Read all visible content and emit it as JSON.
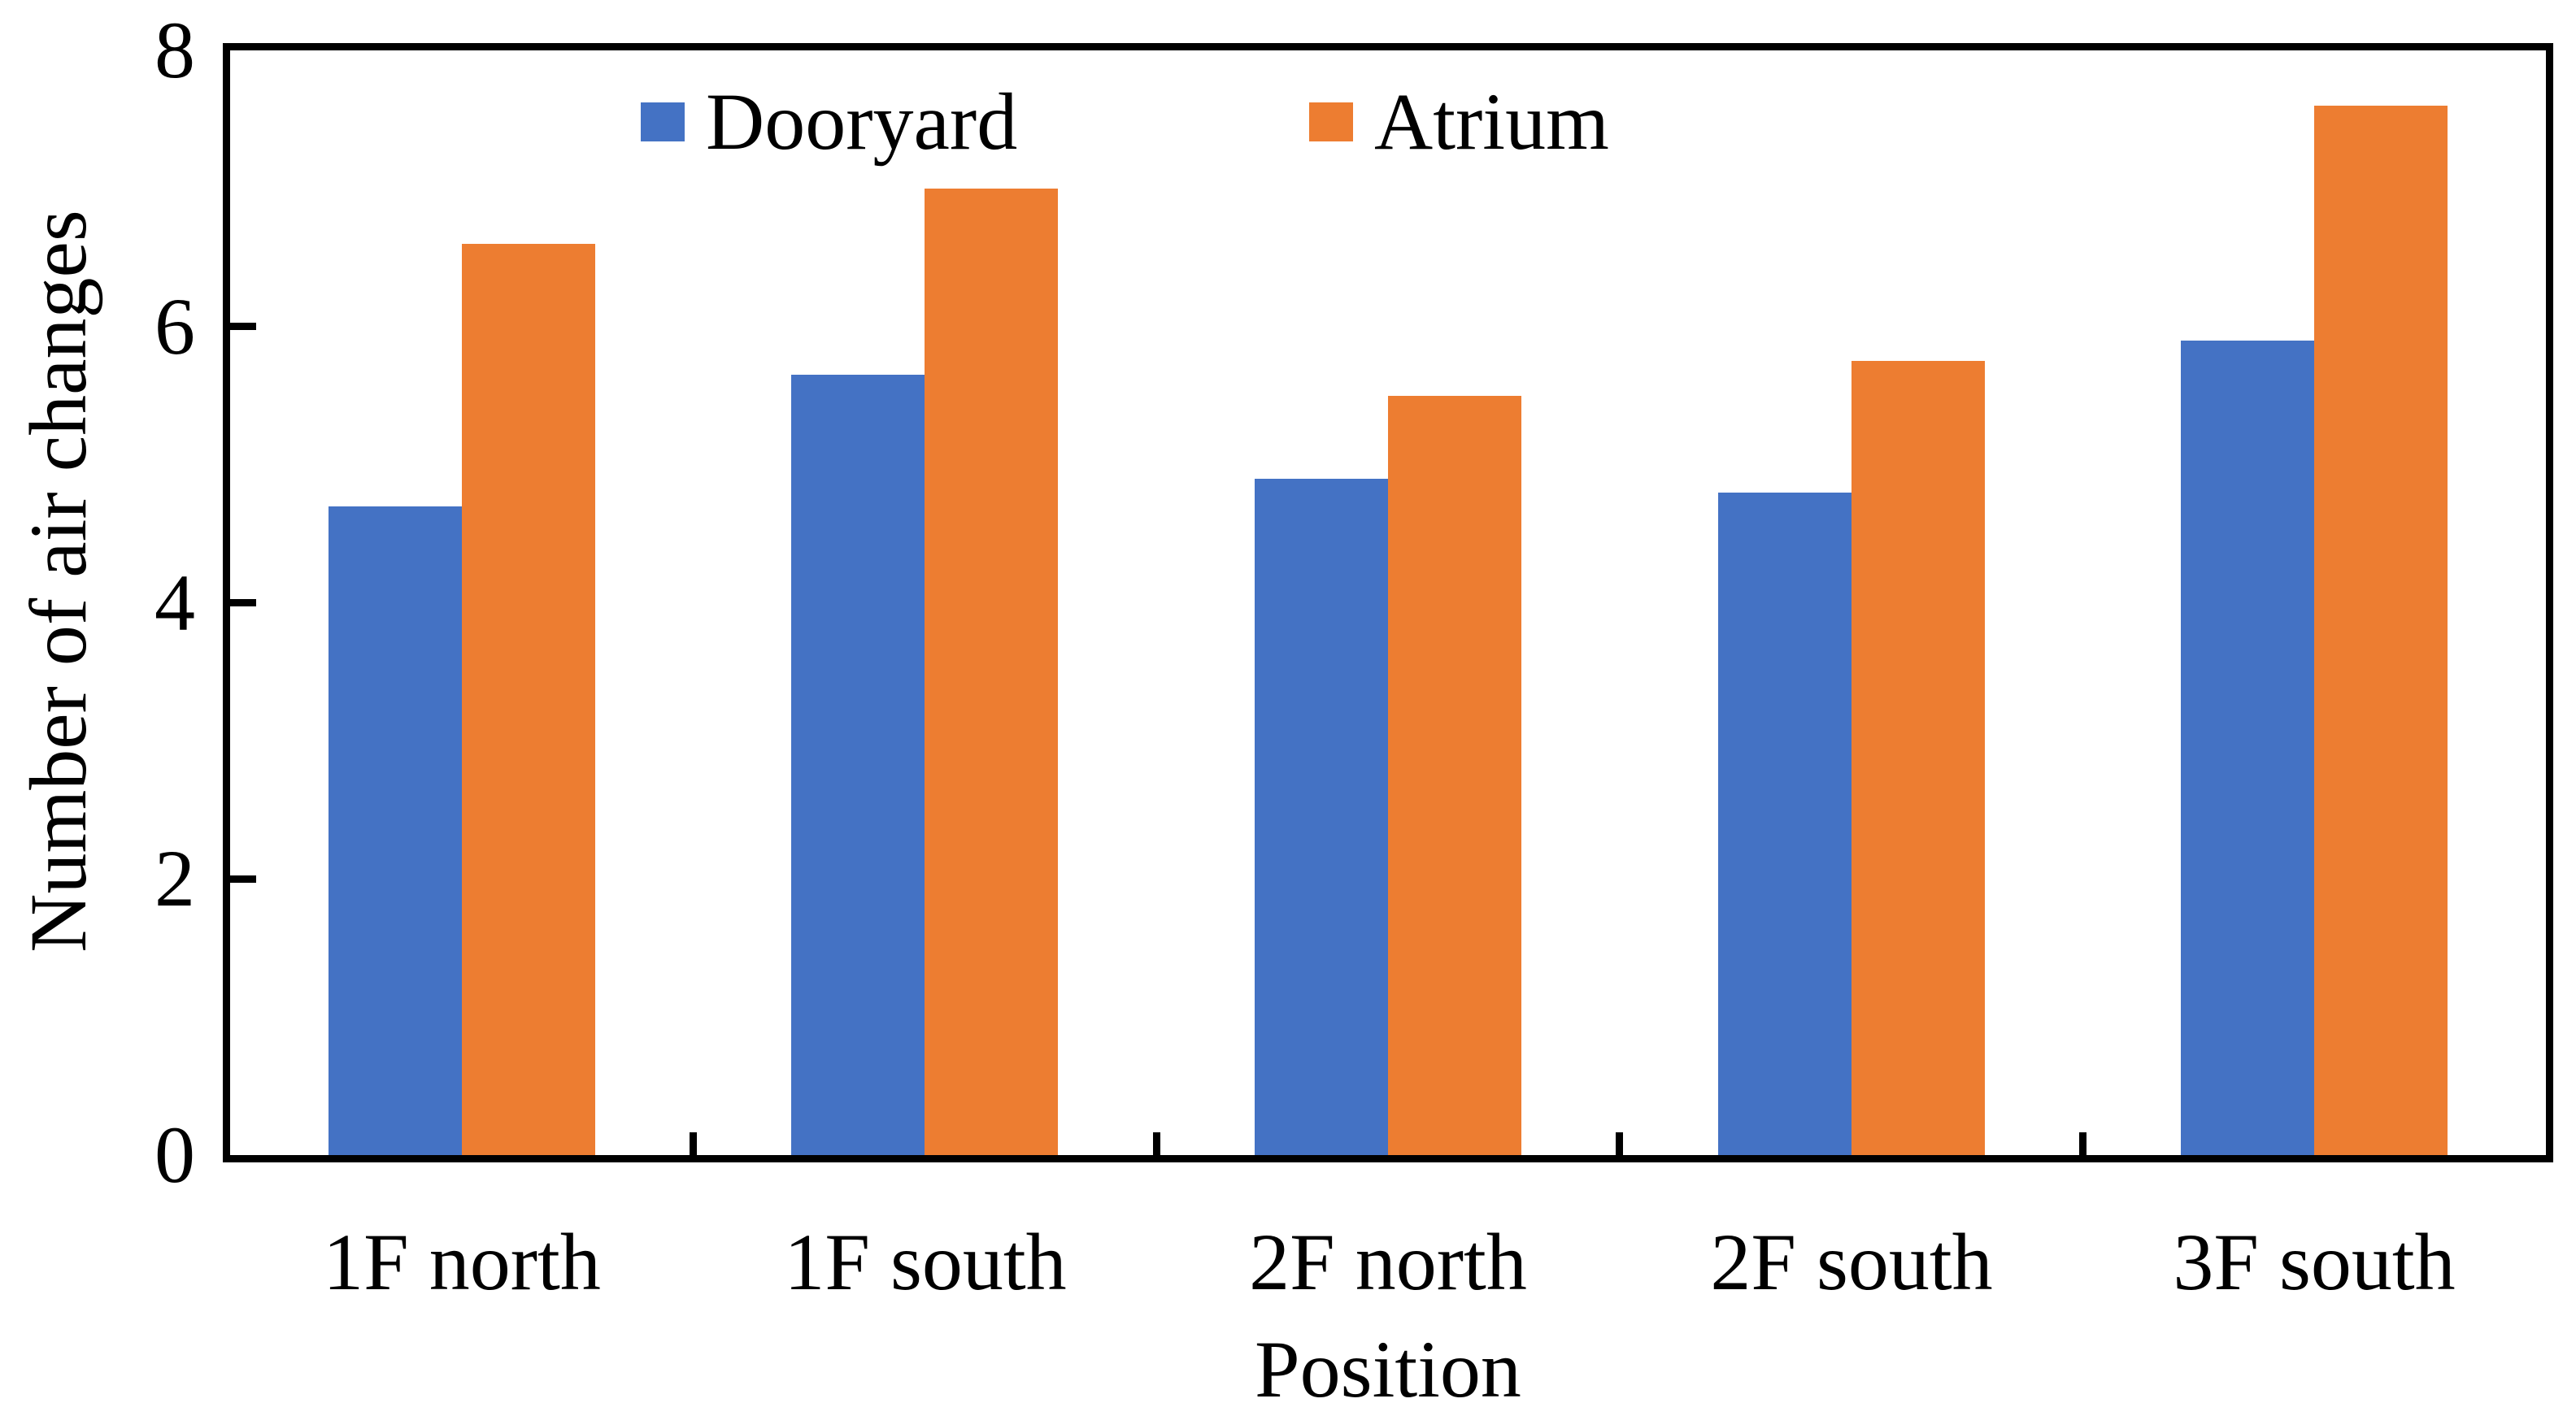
{
  "chart_data": {
    "type": "bar",
    "title": "",
    "categories": [
      "1F north",
      "1F south",
      "2F north",
      "2F south",
      "3F south"
    ],
    "series": [
      {
        "name": "Dooryard",
        "color": "#4472C4",
        "values": [
          4.7,
          5.65,
          4.9,
          4.8,
          5.9
        ]
      },
      {
        "name": "Atrium",
        "color": "#ED7D31",
        "values": [
          6.6,
          7.0,
          5.5,
          5.75,
          7.6
        ]
      }
    ],
    "xlabel": "Position",
    "ylabel": "Number of air changes",
    "ylim": [
      0,
      8
    ],
    "yticks": [
      0,
      2,
      4,
      6,
      8
    ],
    "grid": false,
    "legend_position": "top-inside",
    "bar_orientation": "vertical"
  },
  "colors": {
    "background": "#FFFFFF",
    "axis": "#000000",
    "text": "#000000",
    "series_blue": "#4472C4",
    "series_orange": "#ED7D31"
  }
}
